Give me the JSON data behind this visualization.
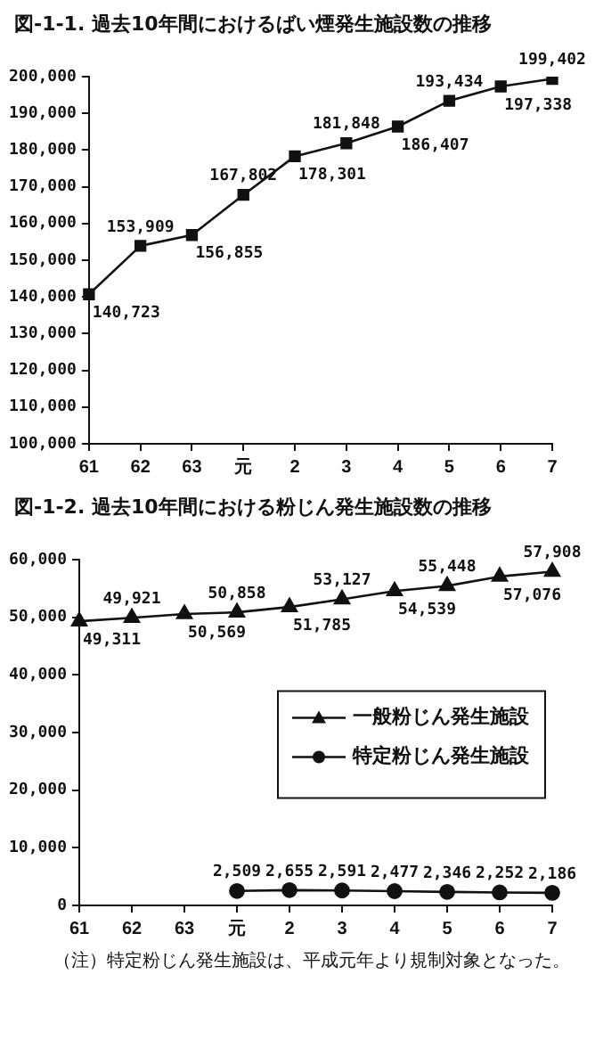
{
  "chart_data": [
    {
      "type": "line",
      "title": "図-1-1. 過去10年間におけるばい煙発生施設数の推移",
      "categories": [
        "61",
        "62",
        "63",
        "元",
        "2",
        "3",
        "4",
        "5",
        "6",
        "7"
      ],
      "series": [
        {
          "color": "#111111",
          "marker": "square",
          "values": [
            140723,
            153909,
            156855,
            167802,
            178301,
            181848,
            186407,
            193434,
            197338,
            199402
          ],
          "value_labels": [
            "140,723",
            "153,909",
            "156,855",
            "167,802",
            "178,301",
            "181,848",
            "186,407",
            "193,434",
            "197,338",
            "199,402"
          ]
        }
      ],
      "ylim": [
        100000,
        200000
      ],
      "yticks": [
        {
          "value": 100000,
          "label": "100,000"
        },
        {
          "value": 110000,
          "label": "110,000"
        },
        {
          "value": 120000,
          "label": "120,000"
        },
        {
          "value": 130000,
          "label": "130,000"
        },
        {
          "value": 140000,
          "label": "140,000"
        },
        {
          "value": 150000,
          "label": "150,000"
        },
        {
          "value": 160000,
          "label": "160,000"
        },
        {
          "value": 170000,
          "label": "170,000"
        },
        {
          "value": 180000,
          "label": "180,000"
        },
        {
          "value": 190000,
          "label": "190,000"
        },
        {
          "value": 200000,
          "label": "200,000"
        }
      ],
      "grid": false,
      "legend": false
    },
    {
      "type": "line",
      "title": "図-1-2. 過去10年間における粉じん発生施設数の推移",
      "categories": [
        "61",
        "62",
        "63",
        "元",
        "2",
        "3",
        "4",
        "5",
        "6",
        "7"
      ],
      "series": [
        {
          "name": "一般粉じん発生施設",
          "color": "#111111",
          "marker": "triangle",
          "values": [
            49311,
            49921,
            50569,
            50858,
            51785,
            53127,
            54539,
            55448,
            57076,
            57908
          ],
          "value_labels": [
            "49,311",
            "49,921",
            "50,569",
            "50,858",
            "51,785",
            "53,127",
            "54,539",
            "55,448",
            "57,076",
            "57,908"
          ]
        },
        {
          "name": "特定粉じん発生施設",
          "color": "#111111",
          "marker": "circle",
          "values": [
            null,
            null,
            null,
            2509,
            2655,
            2591,
            2477,
            2346,
            2252,
            2186
          ],
          "value_labels": [
            null,
            null,
            null,
            "2,509",
            "2,655",
            "2,591",
            "2,477",
            "2,346",
            "2,252",
            "2,186"
          ]
        }
      ],
      "ylim": [
        0,
        60000
      ],
      "yticks": [
        0,
        {
          "value": 10000,
          "label": "10,000"
        },
        {
          "value": 20000,
          "label": "20,000"
        },
        {
          "value": 30000,
          "label": "30,000"
        },
        {
          "value": 40000,
          "label": "40,000"
        },
        {
          "value": 50000,
          "label": "50,000"
        },
        {
          "value": 60000,
          "label": "60,000"
        }
      ],
      "grid": false,
      "legend": "right",
      "annotations": [
        "（注）特定粉じん発生施設は、平成元年より規制対象となった。"
      ]
    }
  ]
}
